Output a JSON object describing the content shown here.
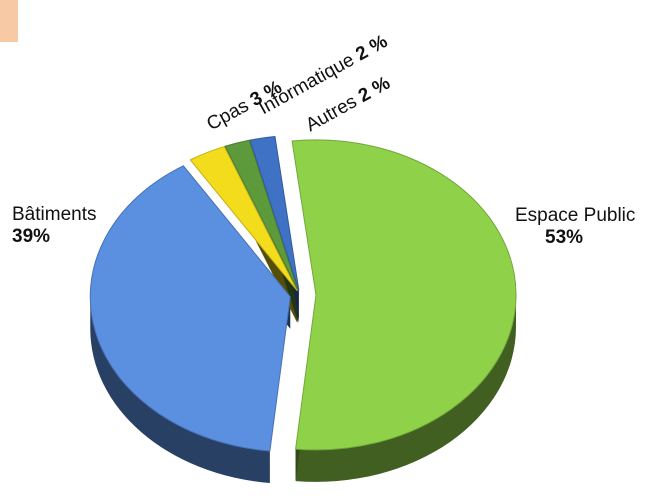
{
  "accent_color": "#f7c9a5",
  "chart_data": {
    "type": "pie",
    "style": "3d-exploded",
    "title": "",
    "slices": [
      {
        "label": "Espace Public",
        "value": 53,
        "value_label": "53%",
        "color": "#8fd24a"
      },
      {
        "label": "Bâtiments",
        "value": 39,
        "value_label": "39%",
        "color": "#5b8fe0"
      },
      {
        "label": "Cpas",
        "value": 3,
        "value_label": "3 %",
        "color": "#f2dc1c"
      },
      {
        "label": "Informatique",
        "value": 2,
        "value_label": "2 %",
        "color": "#5c9a3c"
      },
      {
        "label": "Autres",
        "value": 2,
        "value_label": "2 %",
        "color": "#3f72c4"
      }
    ]
  }
}
